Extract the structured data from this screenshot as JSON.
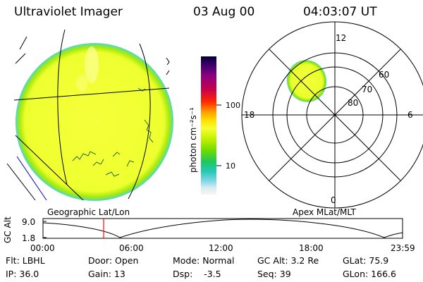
{
  "header": {
    "instrument": "Ultraviolet Imager",
    "date": "03 Aug 00",
    "time": "04:03:07 UT"
  },
  "colorbar": {
    "unit_label": "photon cm⁻²s⁻¹",
    "tick_100": "100",
    "tick_10": "10",
    "colors": [
      "#000033",
      "#3d006e",
      "#8a0080",
      "#c8004a",
      "#ff2a00",
      "#ff9a00",
      "#ffdd00",
      "#f6ff33",
      "#bff000",
      "#6fdc00",
      "#1fc85a",
      "#25c7b4",
      "#7fd6e6",
      "#d6ecef",
      "#f6f6f6"
    ]
  },
  "polar_plot": {
    "mlt_labels": {
      "top": "12",
      "bottom": "0",
      "left": "18",
      "right": "6"
    },
    "lat_labels": [
      "60",
      "70",
      "80"
    ]
  },
  "map_labels": {
    "left": "Geographic Lat/Lon",
    "right": "Apex MLat/MLT"
  },
  "timeline": {
    "axis_label": "GC Alt",
    "y_top": "9.0",
    "y_bottom": "1.8",
    "ticks": [
      "00:00",
      "06:00",
      "12:00",
      "18:00",
      "23:59"
    ],
    "current_marker_hours": 4.05
  },
  "status": {
    "row1": {
      "filter": "Flt: LBHL",
      "door": "Door: Open",
      "mode": "Mode: Normal",
      "gc_alt": "GC Alt: 3.2 Re",
      "glat": "GLat:  75.9"
    },
    "row2": {
      "ip": "IP: 36.0",
      "gain": "Gain: 13",
      "dsp": "Dsp:    -3.5",
      "seq": "Seq: 39",
      "glon": "GLon: 166.6"
    }
  },
  "colors": {
    "disk_fill": "#f3ff33",
    "oval_fill": "#efff3a",
    "edge_cyan": "#3fd7c4",
    "edge_green": "#7fe000",
    "coast_lines": "#1f7a1f",
    "marker_red": "#ff0000",
    "blue_line": "#0000cc"
  }
}
